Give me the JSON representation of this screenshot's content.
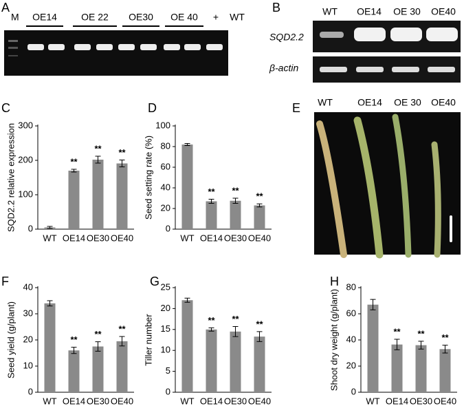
{
  "gel_a": {
    "panel": "A",
    "marker": "M",
    "lanes": [
      "OE14",
      "OE 22",
      "OE30",
      "OE 40",
      "+",
      "WT"
    ]
  },
  "gel_b": {
    "panel": "B",
    "lanes": [
      "WT",
      "OE14",
      "OE 30",
      "OE40"
    ],
    "rows": [
      "SQD2.2",
      "β-actin"
    ]
  },
  "photo_e": {
    "panel": "E",
    "lanes": [
      "WT",
      "OE14",
      "OE 30",
      "OE40"
    ]
  },
  "chart_data": [
    {
      "type": "bar",
      "panel": "C",
      "y_label": "SQD2.2  relative expression",
      "categories": [
        "WT",
        "OE14",
        "OE30",
        "OE40"
      ],
      "values": [
        5,
        170,
        202,
        191
      ],
      "errors": [
        3,
        4,
        10,
        10
      ],
      "annotations": [
        null,
        "**",
        "**",
        "**"
      ],
      "color": "#8a8a8a",
      "ylim": [
        0,
        300
      ],
      "yticks": [
        0,
        100,
        200,
        300
      ]
    },
    {
      "type": "bar",
      "panel": "D",
      "y_label": "Seed setting rate (%)",
      "categories": [
        "WT",
        "OE14",
        "OE30",
        "OE40"
      ],
      "values": [
        82,
        27,
        27.5,
        23
      ],
      "errors": [
        1,
        2,
        2.5,
        1.5
      ],
      "annotations": [
        null,
        "**",
        "**",
        "**"
      ],
      "color": "#8a8a8a",
      "ylim": [
        0,
        100
      ],
      "yticks": [
        0,
        20,
        40,
        60,
        80,
        100
      ]
    },
    {
      "type": "bar",
      "panel": "F",
      "y_label": "Seed yield (g/plant)",
      "categories": [
        "WT",
        "OE14",
        "OE30",
        "OE40"
      ],
      "values": [
        34,
        16,
        17.5,
        19.5
      ],
      "errors": [
        1,
        1.2,
        1.8,
        1.8
      ],
      "annotations": [
        null,
        "**",
        "**",
        "**"
      ],
      "color": "#8a8a8a",
      "ylim": [
        0,
        40
      ],
      "yticks": [
        0,
        10,
        20,
        30,
        40
      ]
    },
    {
      "type": "bar",
      "panel": "G",
      "y_label": "Tiller number",
      "categories": [
        "WT",
        "OE14",
        "OE30",
        "OE40"
      ],
      "values": [
        22,
        15,
        14.5,
        13.3
      ],
      "errors": [
        0.5,
        0.4,
        1.2,
        1.2
      ],
      "annotations": [
        null,
        "**",
        "**",
        "**"
      ],
      "color": "#8a8a8a",
      "ylim": [
        0,
        25
      ],
      "yticks": [
        0,
        5,
        10,
        15,
        20,
        25
      ]
    },
    {
      "type": "bar",
      "panel": "H",
      "y_label": "Shoot dry weight (g/plant)",
      "categories": [
        "WT",
        "OE14",
        "OE30",
        "OE40"
      ],
      "values": [
        67,
        36.5,
        36,
        33
      ],
      "errors": [
        4,
        4,
        3,
        3
      ],
      "annotations": [
        null,
        "**",
        "**",
        "**"
      ],
      "color": "#8a8a8a",
      "ylim": [
        0,
        80
      ],
      "yticks": [
        0,
        20,
        40,
        60,
        80
      ]
    }
  ]
}
